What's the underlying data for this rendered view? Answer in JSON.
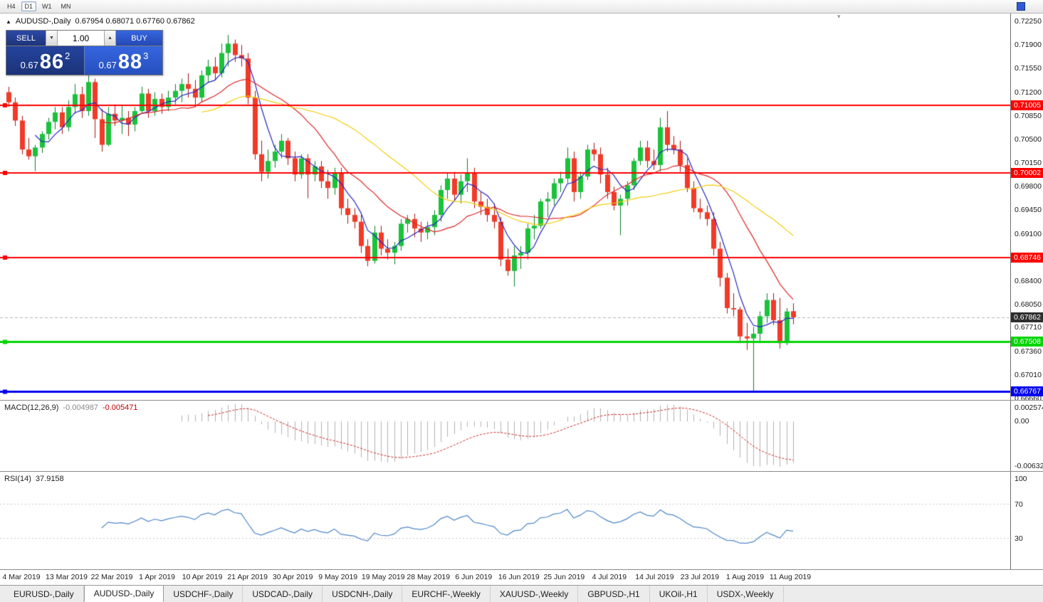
{
  "icons": {
    "chart_icon": "▲",
    "triangle_up": "▲",
    "triangle_down": "▼",
    "shift_marker": "▾"
  },
  "toolbar": {
    "timeframes": [
      {
        "label": "H4",
        "active": false
      },
      {
        "label": "D1",
        "active": true
      },
      {
        "label": "W1",
        "active": false
      },
      {
        "label": "MN",
        "active": false
      }
    ]
  },
  "chart": {
    "title": {
      "symbol_period": "AUDUSD-,Daily",
      "ohlc": "0.67954 0.68071 0.67760 0.67862"
    },
    "trade_panel": {
      "sell_label": "SELL",
      "buy_label": "BUY",
      "volume": "1.00",
      "sell_price": {
        "prefix": "0.67",
        "big": "86",
        "sup": "2"
      },
      "buy_price": {
        "prefix": "0.67",
        "big": "88",
        "sup": "3"
      }
    }
  },
  "chart_data": {
    "type": "candlestick",
    "symbol": "AUDUSD-",
    "period": "Daily",
    "title": "AUDUSD-,Daily",
    "current_ohlc": {
      "open": "0.67954",
      "high": "0.68071",
      "low": "0.67760",
      "close": "0.67862"
    },
    "up_color": "#1ac23a",
    "up_edge": "#0a8028",
    "down_color": "#f23a28",
    "down_edge": "#a81410",
    "y_axis": {
      "max": 0.7225,
      "min": 0.6666,
      "ticks": [
        "0.72250",
        "0.71900",
        "0.71550",
        "0.71200",
        "0.70850",
        "0.70500",
        "0.70150",
        "0.69800",
        "0.69450",
        "0.69100",
        "0.68750",
        "0.68400",
        "0.68050",
        "0.67710",
        "0.67360",
        "0.67010",
        "0.66660"
      ]
    },
    "x_labels": [
      "4 Mar 2019",
      "13 Mar 2019",
      "22 Mar 2019",
      "1 Apr 2019",
      "10 Apr 2019",
      "21 Apr 2019",
      "30 Apr 2019",
      "9 May 2019",
      "19 May 2019",
      "28 May 2019",
      "6 Jun 2019",
      "16 Jun 2019",
      "25 Jun 2019",
      "4 Jul 2019",
      "14 Jul 2019",
      "23 Jul 2019",
      "1 Aug 2019",
      "11 Aug 2019"
    ],
    "moving_averages": [
      {
        "period": 5,
        "color": "#2626c0"
      },
      {
        "period": 15,
        "color": "#dd2626"
      },
      {
        "period": 30,
        "color": "#f2cc0a"
      }
    ],
    "horizontal_lines": [
      {
        "price": 0.71005,
        "label": "0.71005",
        "color": "#ff0000",
        "width": 2
      },
      {
        "price": 0.70002,
        "label": "0.70002",
        "color": "#ff0000",
        "width": 2
      },
      {
        "price": 0.68746,
        "label": "0.68746",
        "color": "#ff0000",
        "width": 2
      },
      {
        "price": 0.67508,
        "label": "0.67508",
        "color": "#00d400",
        "width": 3
      },
      {
        "price": 0.66767,
        "label": "0.66767",
        "color": "#0000ee",
        "width": 3
      }
    ],
    "bid_line": {
      "price": 0.67862,
      "label": "0.67862",
      "badge_color": "#2e2e2e",
      "line_color": "#b5b5b5"
    },
    "indicators": [
      {
        "name": "MACD",
        "label": "MACD(12,26,9)",
        "params": [
          12,
          26,
          9
        ],
        "value_main": "-0.004987",
        "value_signal": "-0.005471",
        "axis_labels": [
          "0.002574",
          "0.00",
          "-0.006326"
        ],
        "range": [
          -0.006326,
          0.002574
        ],
        "histogram_color": "#b0b0b0",
        "signal_color": "#cc2222"
      },
      {
        "name": "RSI",
        "label": "RSI(14)",
        "params": [
          14
        ],
        "value": "37.9158",
        "axis_labels": [
          "100",
          "70",
          "30"
        ],
        "levels": [
          70,
          30
        ],
        "range": [
          0,
          100
        ],
        "line_color": "#4d86c8",
        "level_color": "#c6c6c6"
      }
    ],
    "candles": [
      [
        0.712,
        0.7128,
        0.7098,
        0.7105
      ],
      [
        0.7105,
        0.7112,
        0.707,
        0.7078
      ],
      [
        0.7078,
        0.7085,
        0.7028,
        0.7035
      ],
      [
        0.7035,
        0.7052,
        0.702,
        0.7025
      ],
      [
        0.7025,
        0.7042,
        0.7003,
        0.7038
      ],
      [
        0.7038,
        0.7062,
        0.703,
        0.7058
      ],
      [
        0.7058,
        0.7082,
        0.705,
        0.7076
      ],
      [
        0.7076,
        0.7098,
        0.7065,
        0.709
      ],
      [
        0.709,
        0.7098,
        0.7058,
        0.7068
      ],
      [
        0.7068,
        0.7108,
        0.7062,
        0.7098
      ],
      [
        0.7098,
        0.7132,
        0.7088,
        0.7117
      ],
      [
        0.7117,
        0.7128,
        0.7082,
        0.7092
      ],
      [
        0.7092,
        0.7168,
        0.7085,
        0.7135
      ],
      [
        0.7135,
        0.714,
        0.7052,
        0.708
      ],
      [
        0.708,
        0.7095,
        0.7032,
        0.7042
      ],
      [
        0.7042,
        0.7098,
        0.704,
        0.7088
      ],
      [
        0.7088,
        0.7102,
        0.707,
        0.7078
      ],
      [
        0.7078,
        0.71,
        0.7058,
        0.7082
      ],
      [
        0.7082,
        0.7092,
        0.7055,
        0.7072
      ],
      [
        0.7072,
        0.7098,
        0.7062,
        0.7092
      ],
      [
        0.7092,
        0.7128,
        0.7088,
        0.7118
      ],
      [
        0.7118,
        0.7125,
        0.7082,
        0.7092
      ],
      [
        0.7092,
        0.712,
        0.7085,
        0.711
      ],
      [
        0.711,
        0.7118,
        0.7088,
        0.7098
      ],
      [
        0.7098,
        0.7122,
        0.7092,
        0.7112
      ],
      [
        0.7112,
        0.7132,
        0.7102,
        0.7122
      ],
      [
        0.7122,
        0.714,
        0.7105,
        0.7132
      ],
      [
        0.7132,
        0.7148,
        0.7112,
        0.7125
      ],
      [
        0.7125,
        0.7138,
        0.7098,
        0.7112
      ],
      [
        0.7112,
        0.7152,
        0.7105,
        0.7145
      ],
      [
        0.7145,
        0.7168,
        0.7135,
        0.7158
      ],
      [
        0.7158,
        0.7172,
        0.7138,
        0.7148
      ],
      [
        0.7148,
        0.7192,
        0.7142,
        0.7178
      ],
      [
        0.7178,
        0.7205,
        0.7158,
        0.7192
      ],
      [
        0.7192,
        0.7198,
        0.7165,
        0.7175
      ],
      [
        0.7175,
        0.719,
        0.7158,
        0.717
      ],
      [
        0.717,
        0.7178,
        0.7102,
        0.7112
      ],
      [
        0.7112,
        0.7122,
        0.702,
        0.7028
      ],
      [
        0.7028,
        0.7048,
        0.6988,
        0.7002
      ],
      [
        0.7002,
        0.7035,
        0.6992,
        0.7018
      ],
      [
        0.7018,
        0.7042,
        0.7008,
        0.7032
      ],
      [
        0.7032,
        0.7058,
        0.7022,
        0.7048
      ],
      [
        0.7048,
        0.7052,
        0.7012,
        0.7022
      ],
      [
        0.7022,
        0.7032,
        0.6988,
        0.6998
      ],
      [
        0.6998,
        0.7028,
        0.6992,
        0.7022
      ],
      [
        0.7022,
        0.7028,
        0.6963,
        0.6998
      ],
      [
        0.6998,
        0.7018,
        0.6988,
        0.701
      ],
      [
        0.701,
        0.7018,
        0.6978,
        0.6988
      ],
      [
        0.6988,
        0.7005,
        0.6962,
        0.6978
      ],
      [
        0.6978,
        0.7008,
        0.6968,
        0.7
      ],
      [
        0.7,
        0.7008,
        0.6938,
        0.6948
      ],
      [
        0.6948,
        0.6962,
        0.6925,
        0.6938
      ],
      [
        0.6938,
        0.6948,
        0.6918,
        0.6928
      ],
      [
        0.6928,
        0.6938,
        0.6882,
        0.6892
      ],
      [
        0.6892,
        0.6902,
        0.6862,
        0.687
      ],
      [
        0.687,
        0.6922,
        0.6866,
        0.6912
      ],
      [
        0.6912,
        0.6922,
        0.6878,
        0.6888
      ],
      [
        0.6888,
        0.6902,
        0.6872,
        0.6882
      ],
      [
        0.6882,
        0.6898,
        0.6865,
        0.6892
      ],
      [
        0.6892,
        0.6932,
        0.6885,
        0.6925
      ],
      [
        0.6925,
        0.6938,
        0.6912,
        0.6932
      ],
      [
        0.6932,
        0.694,
        0.6905,
        0.6918
      ],
      [
        0.6918,
        0.6928,
        0.6898,
        0.6912
      ],
      [
        0.6912,
        0.6928,
        0.6902,
        0.692
      ],
      [
        0.692,
        0.6945,
        0.6908,
        0.6938
      ],
      [
        0.6938,
        0.6982,
        0.6928,
        0.6975
      ],
      [
        0.6975,
        0.7,
        0.6962,
        0.6992
      ],
      [
        0.6992,
        0.7002,
        0.6958,
        0.6968
      ],
      [
        0.6968,
        0.6998,
        0.6955,
        0.6988
      ],
      [
        0.6988,
        0.7022,
        0.6972,
        0.7
      ],
      [
        0.7,
        0.7008,
        0.6948,
        0.6958
      ],
      [
        0.6958,
        0.6972,
        0.6938,
        0.695
      ],
      [
        0.695,
        0.6962,
        0.6928,
        0.6938
      ],
      [
        0.6938,
        0.6955,
        0.6918,
        0.6928
      ],
      [
        0.6928,
        0.6935,
        0.6862,
        0.6872
      ],
      [
        0.6872,
        0.6888,
        0.6848,
        0.6855
      ],
      [
        0.6855,
        0.6892,
        0.6832,
        0.6878
      ],
      [
        0.6878,
        0.6892,
        0.6858,
        0.6882
      ],
      [
        0.6882,
        0.6925,
        0.6872,
        0.6918
      ],
      [
        0.6918,
        0.6938,
        0.6902,
        0.6922
      ],
      [
        0.6922,
        0.6962,
        0.6918,
        0.6958
      ],
      [
        0.6958,
        0.6972,
        0.6935,
        0.6962
      ],
      [
        0.6962,
        0.6992,
        0.6952,
        0.6985
      ],
      [
        0.6985,
        0.7002,
        0.6972,
        0.6992
      ],
      [
        0.6992,
        0.7038,
        0.6985,
        0.7022
      ],
      [
        0.7022,
        0.7032,
        0.6958,
        0.6972
      ],
      [
        0.6972,
        0.7002,
        0.6962,
        0.6995
      ],
      [
        0.6995,
        0.7042,
        0.699,
        0.7035
      ],
      [
        0.7035,
        0.7045,
        0.7018,
        0.7028
      ],
      [
        0.7028,
        0.7038,
        0.6985,
        0.6998
      ],
      [
        0.6998,
        0.7008,
        0.6962,
        0.6972
      ],
      [
        0.6972,
        0.698,
        0.6945,
        0.6952
      ],
      [
        0.6952,
        0.6968,
        0.6908,
        0.6962
      ],
      [
        0.6962,
        0.6988,
        0.6952,
        0.6982
      ],
      [
        0.6982,
        0.7022,
        0.6975,
        0.7018
      ],
      [
        0.7018,
        0.7048,
        0.7012,
        0.7038
      ],
      [
        0.7038,
        0.7048,
        0.7008,
        0.7018
      ],
      [
        0.7018,
        0.7035,
        0.7005,
        0.7012
      ],
      [
        0.7012,
        0.7082,
        0.7002,
        0.7068
      ],
      [
        0.7068,
        0.7092,
        0.7032,
        0.7042
      ],
      [
        0.7042,
        0.7055,
        0.7028,
        0.7035
      ],
      [
        0.7035,
        0.7048,
        0.7002,
        0.7012
      ],
      [
        0.7012,
        0.7022,
        0.6972,
        0.6978
      ],
      [
        0.6978,
        0.6988,
        0.6942,
        0.6948
      ],
      [
        0.6948,
        0.6962,
        0.6932,
        0.6942
      ],
      [
        0.6942,
        0.6952,
        0.6922,
        0.6932
      ],
      [
        0.6932,
        0.6942,
        0.6878,
        0.6888
      ],
      [
        0.6888,
        0.6898,
        0.6832,
        0.6845
      ],
      [
        0.6845,
        0.6852,
        0.6792,
        0.68
      ],
      [
        0.68,
        0.6822,
        0.6788,
        0.6798
      ],
      [
        0.6798,
        0.6802,
        0.6748,
        0.6758
      ],
      [
        0.6758,
        0.6778,
        0.6738,
        0.6755
      ],
      [
        0.6755,
        0.6772,
        0.6677,
        0.6762
      ],
      [
        0.6762,
        0.6795,
        0.6748,
        0.6788
      ],
      [
        0.6788,
        0.6822,
        0.6778,
        0.6812
      ],
      [
        0.6812,
        0.6822,
        0.6775,
        0.6782
      ],
      [
        0.6782,
        0.6815,
        0.674,
        0.6748
      ],
      [
        0.6748,
        0.68,
        0.6745,
        0.6795
      ],
      [
        0.67954,
        0.68071,
        0.6776,
        0.67862
      ]
    ]
  },
  "tabs": [
    {
      "label": "EURUSD-,Daily",
      "active": false
    },
    {
      "label": "AUDUSD-,Daily",
      "active": true
    },
    {
      "label": "USDCHF-,Daily",
      "active": false
    },
    {
      "label": "USDCAD-,Daily",
      "active": false
    },
    {
      "label": "USDCNH-,Daily",
      "active": false
    },
    {
      "label": "EURCHF-,Weekly",
      "active": false
    },
    {
      "label": "XAUUSD-,Weekly",
      "active": false
    },
    {
      "label": "GBPUSD-,H1",
      "active": false
    },
    {
      "label": "UKOil-,H1",
      "active": false
    },
    {
      "label": "USDX-,Weekly",
      "active": false
    }
  ]
}
